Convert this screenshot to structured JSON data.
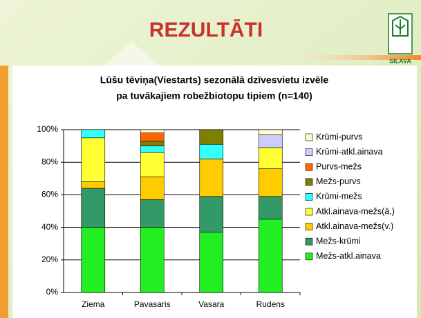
{
  "slide_title": "REZULTĀTI",
  "logo_text": "SILAVA",
  "chart_data": {
    "type": "stacked_bar",
    "title": [
      "Lūšu tēviņa(Viestarts) sezonālā dzīvesvietu  izvēle",
      "pa tuvākajiem robežbiotopu tipiem (n=140)"
    ],
    "categories": [
      "Ziema",
      "Pavasaris",
      "Vasara",
      "Rudens"
    ],
    "ylim": [
      0,
      100
    ],
    "yticks": [
      {
        "value": 0,
        "label": "0%"
      },
      {
        "value": 20,
        "label": "20%"
      },
      {
        "value": 40,
        "label": "40%"
      },
      {
        "value": 60,
        "label": "60%"
      },
      {
        "value": 80,
        "label": "80%"
      },
      {
        "value": 100,
        "label": "100%"
      }
    ],
    "grid": true,
    "legend": "right",
    "series": [
      {
        "name": "Mežs-atkl.ainava",
        "color": "#22ee22",
        "values": [
          40,
          40,
          37,
          45
        ]
      },
      {
        "name": "Mežs-krūmi",
        "color": "#339966",
        "values": [
          24,
          17,
          22,
          14
        ]
      },
      {
        "name": "Atkl.ainava-mežs(v.)",
        "color": "#ffcc00",
        "values": [
          4,
          14,
          23,
          17
        ]
      },
      {
        "name": "Atkl.ainava-mežs(ā.)",
        "color": "#ffff33",
        "values": [
          27,
          15,
          0,
          13
        ]
      },
      {
        "name": "Krūmi-mežs",
        "color": "#33ffff",
        "values": [
          5,
          4,
          9,
          0
        ]
      },
      {
        "name": "Mežs-purvs",
        "color": "#808000",
        "values": [
          0,
          3,
          9,
          0
        ]
      },
      {
        "name": "Purvs-mežs",
        "color": "#ff6600",
        "values": [
          0,
          5,
          0,
          0
        ]
      },
      {
        "name": "Krūmi-atkl.ainava",
        "color": "#ccccff",
        "values": [
          0,
          0,
          0,
          8
        ]
      },
      {
        "name": "Krūmi-purvs",
        "color": "#ffffcc",
        "values": [
          0,
          2,
          0,
          3
        ]
      }
    ]
  }
}
